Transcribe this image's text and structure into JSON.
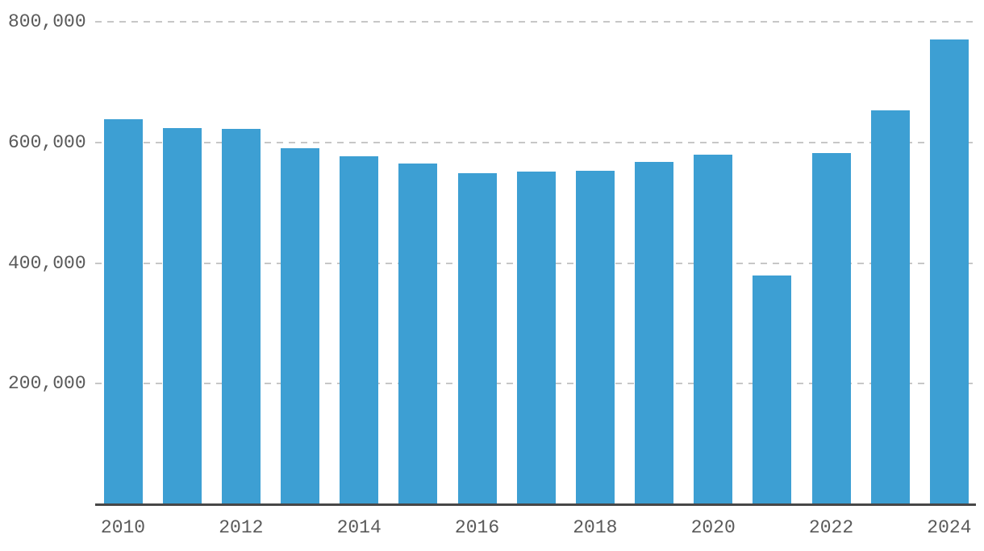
{
  "chart_data": {
    "type": "bar",
    "title": "",
    "xlabel": "",
    "ylabel": "",
    "categories": [
      "2010",
      "2011",
      "2012",
      "2013",
      "2014",
      "2015",
      "2016",
      "2017",
      "2018",
      "2019",
      "2020",
      "2021",
      "2022",
      "2023",
      "2024"
    ],
    "values": [
      638000,
      624000,
      622000,
      590000,
      577000,
      565000,
      549000,
      552000,
      553000,
      568000,
      580000,
      379000,
      582000,
      653000,
      771000
    ],
    "ylim": [
      0,
      800000
    ],
    "yticks": [
      200000,
      400000,
      600000,
      800000
    ],
    "ytick_labels": [
      "200,000",
      "400,000",
      "600,000",
      "800,000"
    ],
    "xticks_shown_at_indices": [
      0,
      2,
      4,
      6,
      8,
      10,
      12,
      14
    ],
    "xtick_labels": [
      "2010",
      "2012",
      "2014",
      "2016",
      "2018",
      "2020",
      "2022",
      "2024"
    ],
    "grid": "horizontal-dashed",
    "legend": "none",
    "colors": {
      "bar": "#3D9FD3",
      "gridline": "#C7C7C7",
      "axis_line": "#474747",
      "tick_text": "#5A5A5A",
      "background": "#FFFFFF"
    }
  }
}
